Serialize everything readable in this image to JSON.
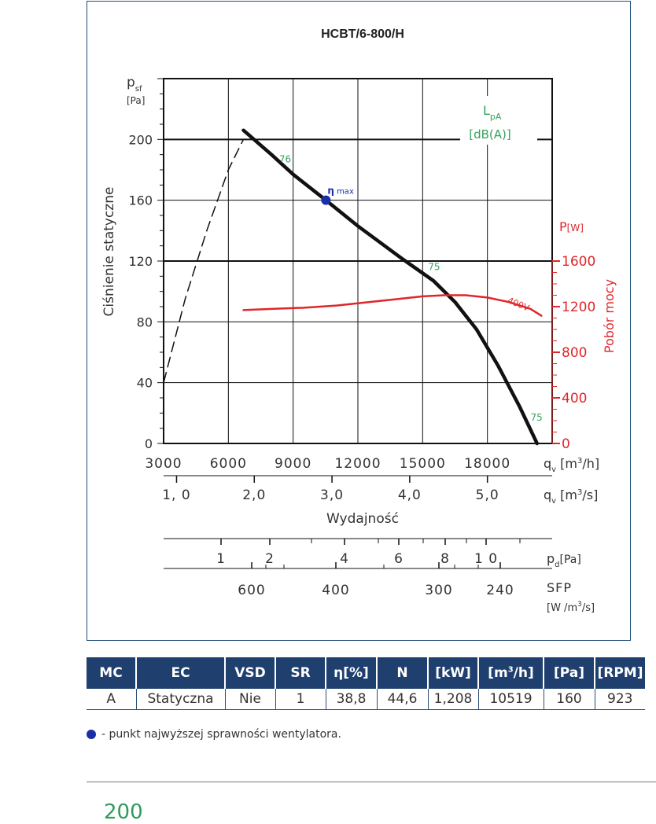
{
  "chart_data": {
    "type": "line",
    "title": "HCBT/6-800/H",
    "y_axis": {
      "symbol": "p",
      "symbol_sub": "sf",
      "unit": "[Pa]",
      "label": "Ciśnienie statyczne",
      "ticks": [
        0,
        40,
        80,
        120,
        160,
        200
      ],
      "tick_labels": [
        "0",
        "40",
        "80",
        "120",
        "160",
        "200"
      ],
      "range": [
        0,
        240
      ]
    },
    "x_axis": {
      "range": [
        3000,
        21000
      ],
      "ticks": [
        3000,
        6000,
        9000,
        12000,
        15000,
        18000
      ],
      "tick_labels": [
        "3000",
        "6000",
        "9000",
        "12000",
        "15000",
        "18000"
      ],
      "symbol": "q",
      "symbol_sub": "v",
      "unit_pre": "[m",
      "unit_sup": "3",
      "unit_post": "/h]"
    },
    "x_axis_2": {
      "ticks": [
        1.0,
        2.0,
        3.0,
        4.0,
        5.0
      ],
      "tick_labels": [
        "1, 0",
        "2,0",
        "3,0",
        "4,0",
        "5,0"
      ],
      "symbol": "q",
      "symbol_sub": "v",
      "unit_pre": "[m",
      "unit_sup": "3",
      "unit_post": "/s]",
      "label": "Wydajność"
    },
    "y_axis_right": {
      "symbol": "P",
      "unit": "[W]",
      "label": "Pobór mocy",
      "ticks": [
        0,
        400,
        800,
        1200,
        1600
      ],
      "tick_labels": [
        "0",
        "400",
        "800",
        "1200",
        "1600"
      ],
      "range": [
        0,
        3200
      ],
      "color": "#e0262a"
    },
    "dynamic_pressure_axis": {
      "ticks": [
        1,
        2,
        4,
        6,
        8,
        10
      ],
      "tick_labels": [
        "1",
        "2",
        "4",
        "6",
        "8",
        "1 0"
      ],
      "symbol": "p",
      "symbol_sub": "d",
      "unit": "[Pa]"
    },
    "sfp_axis": {
      "ticks": [
        600,
        400,
        300,
        240
      ],
      "tick_labels": [
        "600",
        "400",
        "300",
        "240"
      ],
      "label": "SFP",
      "unit_pre": "[W /m",
      "unit_sup": "3",
      "unit_post": "/s]"
    },
    "noise_legend": {
      "symbol": "L",
      "symbol_sub": "pA",
      "unit": "[dB(A)]",
      "color": "#33a35a"
    },
    "series": [
      {
        "name": "pressure",
        "color": "#111111",
        "x": [
          6700,
          8000,
          9000,
          10519,
          12000,
          14000,
          15500,
          16500,
          17500,
          18500,
          19500,
          20300
        ],
        "y": [
          206,
          190,
          177,
          160,
          143,
          122,
          107,
          93,
          75,
          51,
          24,
          0
        ]
      },
      {
        "name": "400V",
        "color": "#e0262a",
        "axis": "right",
        "x": [
          6700,
          8000,
          9500,
          11000,
          12500,
          14000,
          15000,
          16000,
          17000,
          18000,
          19000,
          20000,
          20500
        ],
        "y": [
          1170,
          1180,
          1190,
          1210,
          1240,
          1270,
          1290,
          1300,
          1300,
          1280,
          1240,
          1180,
          1120
        ]
      }
    ],
    "system_curve": {
      "x": [
        3000,
        4000,
        5000,
        6000,
        6700
      ],
      "y": [
        40,
        95,
        140,
        180,
        200
      ],
      "style": "dashed"
    },
    "annotations": [
      {
        "text": "76",
        "x": 8350,
        "y": 185
      },
      {
        "text": "75",
        "x": 15250,
        "y": 114
      },
      {
        "text": "75",
        "x": 20000,
        "y": 15
      }
    ],
    "eta_point": {
      "x": 10519,
      "y": 160,
      "label_symbol": "η",
      "label_suffix": "max"
    }
  },
  "table": {
    "headers": [
      "MC",
      "EC",
      "VSD",
      "SR",
      "η[%]",
      "N",
      "[kW]",
      "[m3/h]",
      "[Pa]",
      "[RPM]"
    ],
    "row": [
      "A",
      "Statyczna",
      "Nie",
      "1",
      "38,8",
      "44,6",
      "1,208",
      "10519",
      "160",
      "923"
    ]
  },
  "legend_note": "- punkt najwyższej sprawności wentylatora.",
  "page_number": "200",
  "colors": {
    "header_bg": "#1f3f6e",
    "accent_green": "#2e9b5c",
    "power_red": "#e0262a",
    "eta_point": "#1a2ea8"
  }
}
